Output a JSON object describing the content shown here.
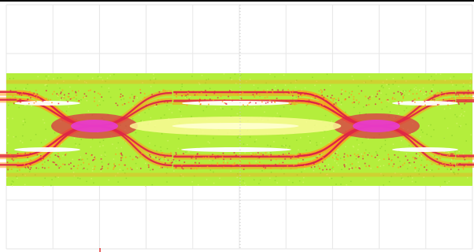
{
  "display": {
    "background_color": "#ffffff",
    "top_border_color": "#000000",
    "grid_color": "#e6e6e6",
    "center_marker_color": "#c8c8c8",
    "cursor_marker_color": "#e03030",
    "icons": [
      "center-axis-tick-icon",
      "trigger-cursor-icon"
    ]
  },
  "grid": {
    "columns": 10,
    "rows": 5,
    "show": true
  },
  "eye_diagram": {
    "eye_count": 2,
    "density_colors": {
      "low": "#b4ee3c",
      "medium": "#ff9a1e",
      "high": "#de2646",
      "peak": "#e83cd2",
      "open": "#fafa96",
      "clear": "#ffffff"
    }
  }
}
